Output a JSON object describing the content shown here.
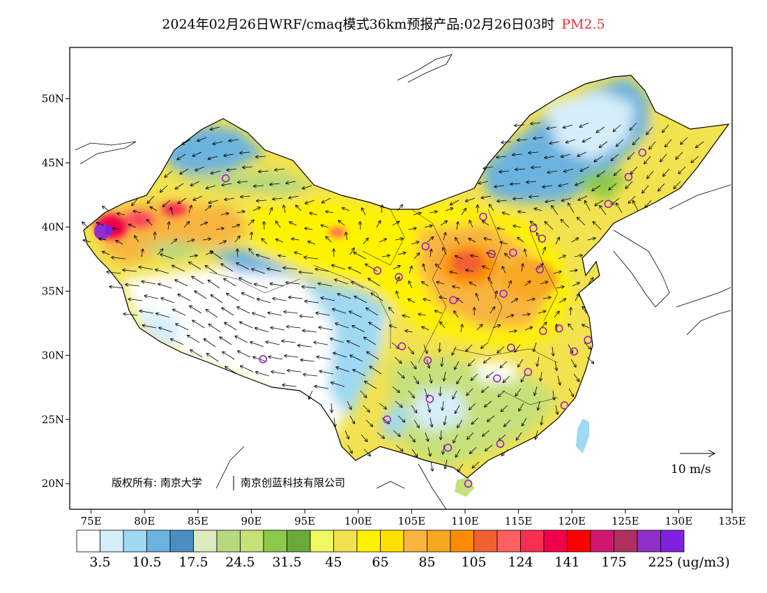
{
  "title": {
    "main": "2024年02月26日WRF/cmaq模式36km预报产品:02月26日03时",
    "variable": "PM2.5",
    "variable_color": "#e8303a"
  },
  "axes": {
    "lon_labels": [
      "75E",
      "80E",
      "85E",
      "90E",
      "95E",
      "100E",
      "105E",
      "110E",
      "115E",
      "120E",
      "125E",
      "130E",
      "135E"
    ],
    "lat_labels": [
      "50N",
      "45N",
      "40N",
      "35N",
      "30N",
      "25N",
      "20N"
    ],
    "lon_range": [
      73,
      135
    ],
    "lat_range": [
      18,
      54
    ]
  },
  "copyright": {
    "part1": "版权所有: 南京大学",
    "part2": "南京创蓝科技有限公司"
  },
  "wind_legend": {
    "label": "10 m/s"
  },
  "colorbar": {
    "colors": [
      "#ffffff",
      "#d6eefa",
      "#9fd8f2",
      "#6cb2de",
      "#4a8ec4",
      "#dcebc0",
      "#b8d880",
      "#c6e07a",
      "#8cc84a",
      "#6aaa38",
      "#eef860",
      "#f2e250",
      "#fff200",
      "#ffe000",
      "#f8b440",
      "#f8a820",
      "#ff8c00",
      "#f06030",
      "#ff6060",
      "#f83050",
      "#f0004a",
      "#ff0000",
      "#d01870",
      "#b03060",
      "#9030c8",
      "#8020e0"
    ],
    "labels": [
      "3.5",
      "10.5",
      "17.5",
      "24.5",
      "31.5",
      "45",
      "65",
      "85",
      "105",
      "124",
      "141",
      "175",
      "225"
    ],
    "unit": "(ug/m3)"
  },
  "stations": [
    {
      "lon": 87.6,
      "lat": 43.8
    },
    {
      "lon": 91.1,
      "lat": 29.7
    },
    {
      "lon": 101.8,
      "lat": 36.6
    },
    {
      "lon": 103.8,
      "lat": 36.1
    },
    {
      "lon": 106.3,
      "lat": 38.5
    },
    {
      "lon": 111.7,
      "lat": 40.8
    },
    {
      "lon": 112.5,
      "lat": 37.9
    },
    {
      "lon": 114.5,
      "lat": 38.0
    },
    {
      "lon": 116.4,
      "lat": 39.9
    },
    {
      "lon": 117.2,
      "lat": 39.1
    },
    {
      "lon": 117.0,
      "lat": 36.7
    },
    {
      "lon": 113.6,
      "lat": 34.8
    },
    {
      "lon": 108.9,
      "lat": 34.3
    },
    {
      "lon": 117.3,
      "lat": 31.9
    },
    {
      "lon": 118.8,
      "lat": 32.1
    },
    {
      "lon": 121.5,
      "lat": 31.2
    },
    {
      "lon": 120.2,
      "lat": 30.3
    },
    {
      "lon": 114.3,
      "lat": 30.6
    },
    {
      "lon": 115.9,
      "lat": 28.7
    },
    {
      "lon": 113.0,
      "lat": 28.2
    },
    {
      "lon": 119.3,
      "lat": 26.1
    },
    {
      "lon": 113.3,
      "lat": 23.1
    },
    {
      "lon": 108.4,
      "lat": 22.8
    },
    {
      "lon": 110.3,
      "lat": 20.0
    },
    {
      "lon": 106.7,
      "lat": 26.6
    },
    {
      "lon": 102.7,
      "lat": 25.0
    },
    {
      "lon": 104.1,
      "lat": 30.7
    },
    {
      "lon": 106.5,
      "lat": 29.6
    },
    {
      "lon": 123.4,
      "lat": 41.8
    },
    {
      "lon": 125.3,
      "lat": 43.9
    },
    {
      "lon": 126.6,
      "lat": 45.8
    }
  ]
}
